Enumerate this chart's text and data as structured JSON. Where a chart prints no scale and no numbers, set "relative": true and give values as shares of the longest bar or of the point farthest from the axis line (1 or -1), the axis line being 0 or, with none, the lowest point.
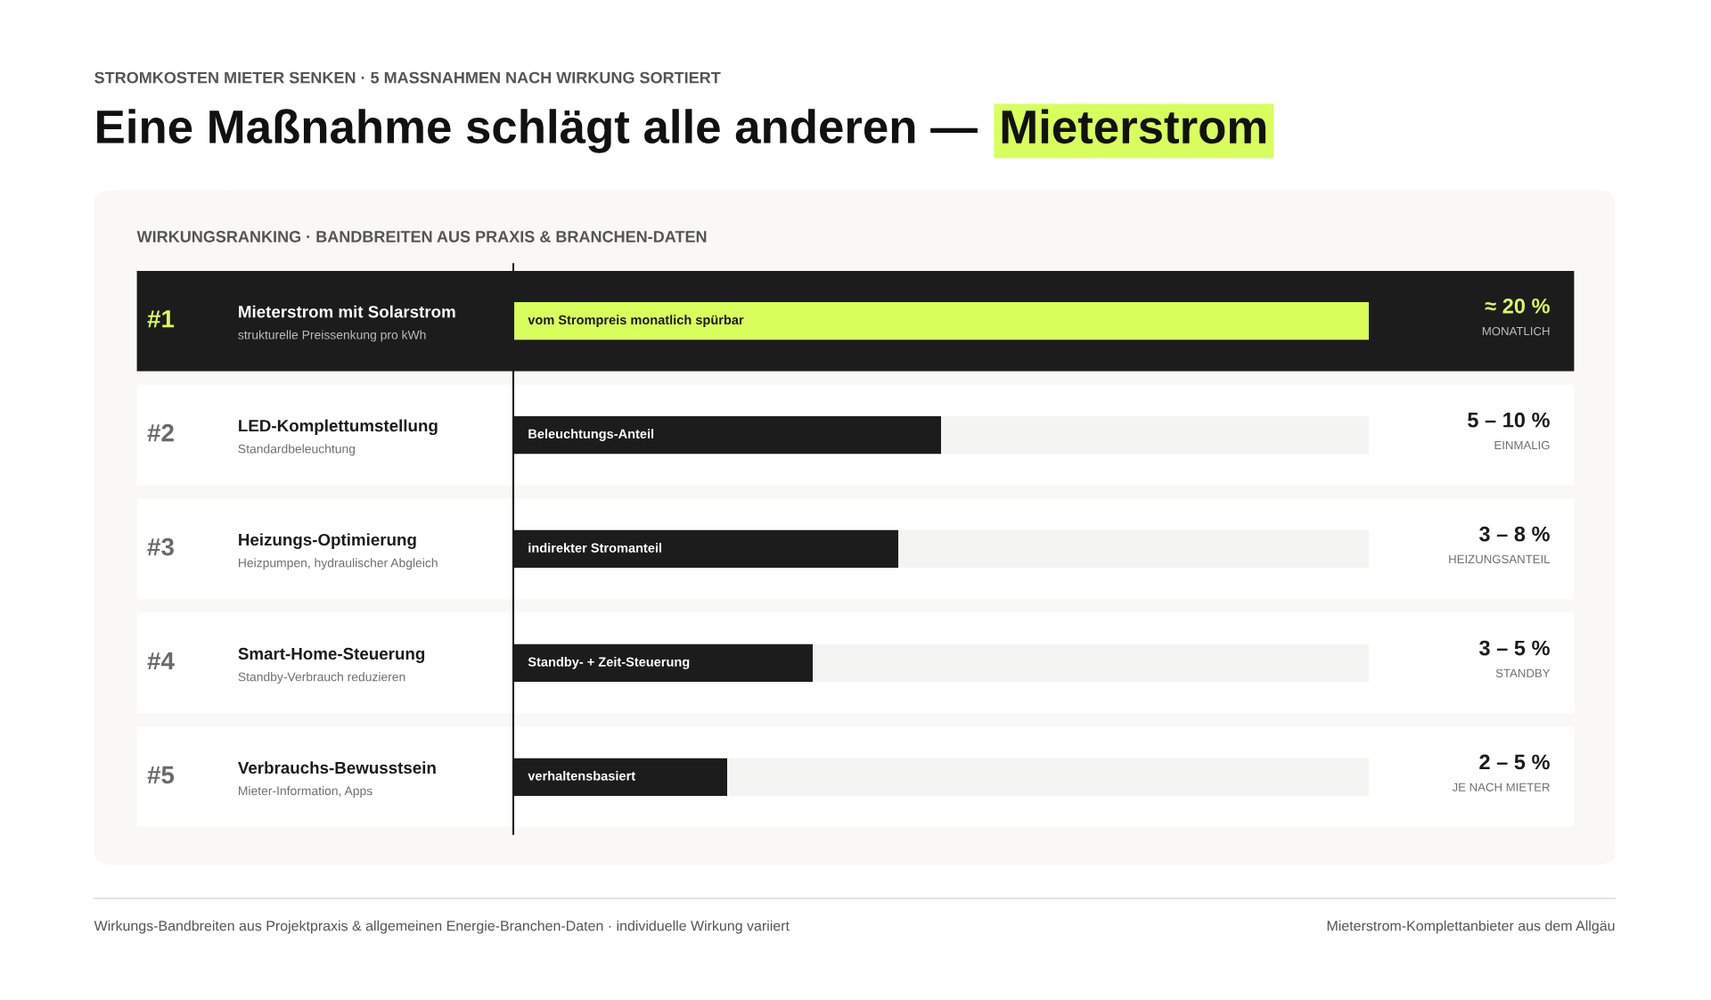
{
  "chart_data": {
    "type": "bar",
    "orientation": "horizontal",
    "relative": true,
    "subtitle": "STROMKOSTEN MIETER SENKEN · 5 MASSNAHMEN NACH WIRKUNG SORTIERT",
    "title": "Eine Maßnahme schlägt alle anderen — Mieterstrom",
    "categories": [
      "Mieterstrom mit Solarstrom",
      "LED-Komplettumstellung",
      "Heizungs-Optimierung",
      "Smart-Home-Steuerung",
      "Verbrauchs-Bewusstsein"
    ],
    "values": [
      1,
      0.5,
      0.45,
      0.35,
      0.25
    ],
    "colors": [
      "#d8ff5c",
      "#1c1c1c",
      "#1c1c1c",
      "#1c1c1c",
      "#1c1c1c"
    ],
    "annotations": [
      "#1",
      "strukturelle Preissenkung pro kWh",
      "vom Strompreis monatlich spürbar",
      "≈ 20 %",
      "MONATLICH",
      "#2",
      "Standardbeleuchtung",
      "Beleuchtungs-Anteil",
      "5 – 10 %",
      "EINMALIG",
      "#3",
      "Heizpumpen, hydraulischer Abgleich",
      "indirekter Stromanteil",
      "3 – 8 %",
      "HEIZUNGSANTEIL",
      "#4",
      "Standby-Verbrauch reduzieren",
      "Standby- + Zeit-Steuerung",
      "3 – 5 %",
      "STANDBY",
      "#5",
      "Mieter-Information, Apps",
      "verhaltensbasiert",
      "2 – 5 %",
      "JE NACH MIETER",
      "WIRKUNGSRANKING · BANDBREITEN AUS PRAXIS & BRANCHEN-DATEN",
      "Wirkungs-Bandbreiten aus Projektpraxis & allgemeinen Energie-Branchen-Daten · individuelle Wirkung variiert",
      "Mieterstrom-Komplettanbieter aus dem Allgäu"
    ]
  }
}
